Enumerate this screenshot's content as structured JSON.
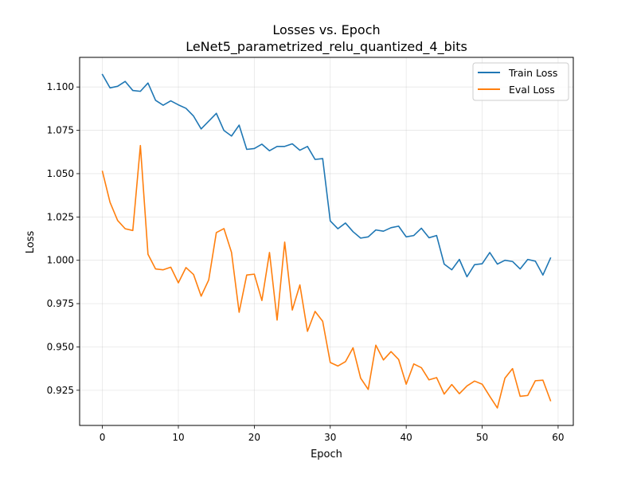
{
  "chart_data": {
    "type": "line",
    "title": "Losses vs. Epoch",
    "subtitle": "LeNet5_parametrized_relu_quantized_4_bits",
    "xlabel": "Epoch",
    "ylabel": "Loss",
    "xlim": [
      -3,
      62
    ],
    "ylim": [
      0.9047,
      1.1171
    ],
    "x_ticks": [
      0,
      10,
      20,
      30,
      40,
      50,
      60
    ],
    "y_ticks": [
      0.925,
      0.95,
      0.975,
      1.0,
      1.025,
      1.05,
      1.075,
      1.1
    ],
    "y_tick_labels": [
      "0.925",
      "0.950",
      "0.975",
      "1.000",
      "1.025",
      "1.050",
      "1.075",
      "1.100"
    ],
    "grid": true,
    "legend_position": "top-right",
    "x": [
      0,
      1,
      2,
      3,
      4,
      5,
      6,
      7,
      8,
      9,
      10,
      11,
      12,
      13,
      14,
      15,
      16,
      17,
      18,
      19,
      20,
      21,
      22,
      23,
      24,
      25,
      26,
      27,
      28,
      29,
      30,
      31,
      32,
      33,
      34,
      35,
      36,
      37,
      38,
      39,
      40,
      41,
      42,
      43,
      44,
      45,
      46,
      47,
      48,
      49,
      50,
      51,
      52,
      53,
      54,
      55,
      56,
      57,
      58,
      59
    ],
    "series": [
      {
        "name": "Train Loss",
        "color": "#1f77b4",
        "values": [
          1.1072,
          1.0995,
          1.1004,
          1.1032,
          1.098,
          1.0975,
          1.1023,
          1.0923,
          1.0895,
          1.092,
          1.0897,
          1.0877,
          1.0832,
          1.0758,
          1.0803,
          1.0848,
          1.0749,
          1.0717,
          1.078,
          1.064,
          1.0645,
          1.067,
          1.0632,
          1.0657,
          1.0657,
          1.0672,
          1.0635,
          1.0657,
          1.0582,
          1.0587,
          1.0227,
          1.0182,
          1.0215,
          1.0165,
          1.0128,
          1.0135,
          1.0175,
          1.0168,
          1.0188,
          1.0197,
          1.0135,
          1.0143,
          1.0185,
          1.013,
          1.0143,
          0.9978,
          0.9945,
          1.0005,
          0.9905,
          0.9975,
          0.998,
          1.0045,
          0.9978,
          1.0,
          0.9993,
          0.995,
          1.0005,
          0.9995,
          0.9915,
          1.0013
        ]
      },
      {
        "name": "Eval Loss",
        "color": "#ff7f0e",
        "values": [
          1.0513,
          1.0335,
          1.023,
          1.0182,
          1.0172,
          1.0662,
          1.0035,
          0.995,
          0.9945,
          0.996,
          0.987,
          0.9958,
          0.9918,
          0.9793,
          0.9887,
          1.016,
          1.0183,
          1.0045,
          0.97,
          0.9915,
          0.992,
          0.9768,
          1.0045,
          0.9655,
          1.0105,
          0.9713,
          0.9858,
          0.959,
          0.9705,
          0.9648,
          0.941,
          0.939,
          0.9415,
          0.9495,
          0.932,
          0.9255,
          0.951,
          0.9425,
          0.9473,
          0.9428,
          0.9285,
          0.9402,
          0.938,
          0.931,
          0.9323,
          0.9228,
          0.9283,
          0.923,
          0.9275,
          0.9303,
          0.9285,
          0.9215,
          0.9148,
          0.932,
          0.9375,
          0.9215,
          0.922,
          0.9305,
          0.9308,
          0.919
        ]
      }
    ]
  }
}
